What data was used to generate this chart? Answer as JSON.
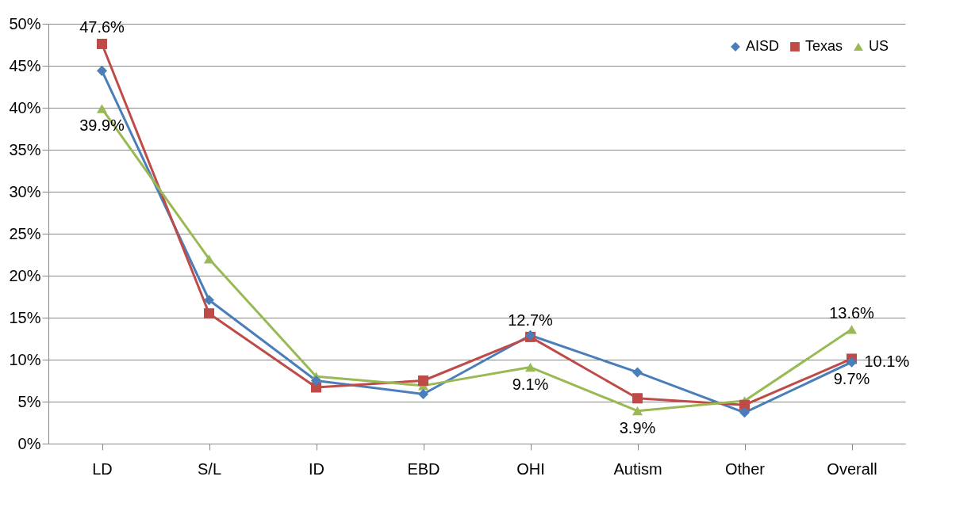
{
  "chart_data": {
    "type": "line",
    "categories": [
      "LD",
      "S/L",
      "ID",
      "EBD",
      "OHI",
      "Autism",
      "Other",
      "Overall"
    ],
    "series": [
      {
        "name": "AISD",
        "color": "#4a7ebb",
        "marker": "diamond",
        "values": [
          44.4,
          17.1,
          7.5,
          5.9,
          12.9,
          8.5,
          3.7,
          9.7
        ],
        "value_labels": [
          null,
          null,
          null,
          null,
          null,
          null,
          null,
          "9.7%"
        ]
      },
      {
        "name": "Texas",
        "color": "#be4b48",
        "marker": "square",
        "values": [
          47.6,
          15.5,
          6.7,
          7.5,
          12.7,
          5.4,
          4.6,
          10.1
        ],
        "value_labels": [
          "47.6%",
          null,
          null,
          null,
          "12.7%",
          null,
          null,
          "10.1%"
        ]
      },
      {
        "name": "US",
        "color": "#98b954",
        "marker": "triangle",
        "values": [
          39.9,
          22.0,
          8.0,
          6.9,
          9.1,
          3.9,
          5.1,
          13.6
        ],
        "value_labels": [
          "39.9%",
          null,
          null,
          null,
          "9.1%",
          "3.9%",
          null,
          "13.6%"
        ]
      }
    ],
    "ylim": [
      0,
      50
    ],
    "yticks": [
      {
        "value": 0,
        "label": "0%"
      },
      {
        "value": 5,
        "label": "5%"
      },
      {
        "value": 10,
        "label": "10%"
      },
      {
        "value": 15,
        "label": "15%"
      },
      {
        "value": 20,
        "label": "20%"
      },
      {
        "value": 25,
        "label": "25%"
      },
      {
        "value": 30,
        "label": "30%"
      },
      {
        "value": 35,
        "label": "35%"
      },
      {
        "value": 40,
        "label": "40%"
      },
      {
        "value": 45,
        "label": "45%"
      },
      {
        "value": 50,
        "label": "50%"
      }
    ],
    "grid": "y",
    "legend": "top right"
  }
}
